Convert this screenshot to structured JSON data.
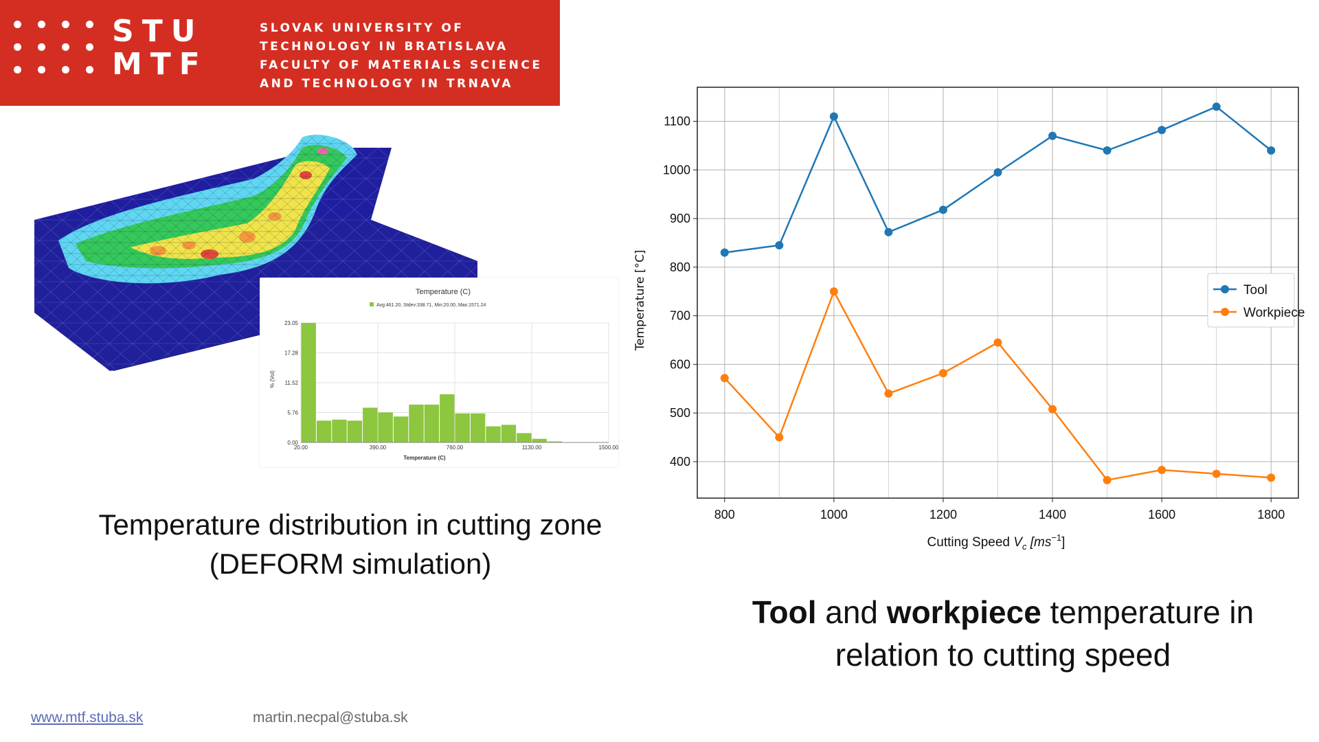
{
  "header": {
    "logo_top": "STU",
    "logo_bottom": "MTF",
    "university_lines": [
      "SLOVAK UNIVERSITY OF",
      "TECHNOLOGY IN BRATISLAVA",
      "FACULTY OF MATERIALS SCIENCE",
      "AND TECHNOLOGY IN TRNAVA"
    ],
    "brand_color": "#d42e22"
  },
  "captions": {
    "left_line1": "Temperature distribution in cutting zone",
    "left_line2": "(DEFORM simulation)",
    "right_bold1": "Tool",
    "right_mid": " and ",
    "right_bold2": "workpiece",
    "right_rest": " temperature in",
    "right_line2": "relation to cutting speed"
  },
  "footer": {
    "website": "www.mtf.stuba.sk",
    "email": "martin.necpal@stuba.sk"
  },
  "chart_data": [
    {
      "type": "line",
      "title": "",
      "xlabel": "Cutting Speed Vc [ms-1]",
      "xlabel_base": "Cutting Speed ",
      "xlabel_var": "V",
      "xlabel_sub": "c",
      "xlabel_unit": "[ms",
      "xlabel_exp": "−1",
      "xlabel_close": "]",
      "ylabel": "Temperature [°C]",
      "x": [
        800,
        900,
        1000,
        1100,
        1200,
        1300,
        1400,
        1500,
        1600,
        1700,
        1800
      ],
      "xlim": [
        750,
        1850
      ],
      "ylim": [
        325,
        1170
      ],
      "xticks": [
        800,
        1000,
        1200,
        1400,
        1600,
        1800
      ],
      "yticks": [
        400,
        500,
        600,
        700,
        800,
        900,
        1000,
        1100
      ],
      "grid": true,
      "legend": "center-right",
      "series": [
        {
          "name": "Tool",
          "color": "#1f77b4",
          "values": [
            830,
            845,
            1110,
            872,
            918,
            995,
            1070,
            1040,
            1082,
            1130,
            1040
          ]
        },
        {
          "name": "Workpiece",
          "color": "#ff7f0e",
          "values": [
            572,
            450,
            750,
            540,
            582,
            645,
            508,
            362,
            383,
            375,
            367
          ]
        }
      ]
    },
    {
      "type": "bar",
      "title": "Temperature (C)",
      "legend_text": "Avg:461.20, Stdev:338.71, Min:20.00, Max:1571.24",
      "xlabel": "Temperature (C)",
      "ylabel": "% (Vol)",
      "color": "#8dc63f",
      "xlim": [
        20,
        1500
      ],
      "ylim": [
        0,
        23.05
      ],
      "xticks": [
        "20.00",
        "390.00",
        "760.00",
        "1130.00",
        "1500.00"
      ],
      "xtick_values": [
        20,
        390,
        760,
        1130,
        1500
      ],
      "yticks": [
        "0.00",
        "5.76",
        "11.52",
        "17.28",
        "23.05"
      ],
      "ytick_values": [
        0,
        5.76,
        11.52,
        17.28,
        23.05
      ],
      "bin_width": 74,
      "values": [
        23.05,
        4.2,
        4.4,
        4.2,
        6.7,
        5.8,
        5.0,
        7.3,
        7.3,
        9.3,
        5.6,
        5.6,
        3.1,
        3.4,
        1.8,
        0.7,
        0.2
      ]
    }
  ]
}
